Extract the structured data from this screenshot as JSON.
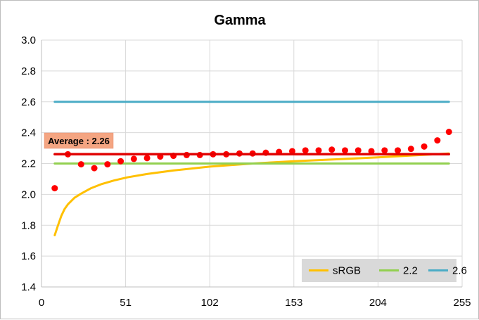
{
  "chart_data": {
    "type": "line",
    "title": "Gamma",
    "xlabel": "",
    "ylabel": "",
    "xlim": [
      0,
      255
    ],
    "ylim": [
      1.4,
      3.0
    ],
    "x_ticks": [
      "0",
      "51",
      "102",
      "153",
      "204",
      "255"
    ],
    "x_tick_values": [
      0,
      51,
      102,
      153,
      204,
      255
    ],
    "y_ticks": [
      "1.4",
      "1.6",
      "1.8",
      "2.0",
      "2.2",
      "2.4",
      "2.6",
      "2.8",
      "3.0"
    ],
    "y_tick_values": [
      1.4,
      1.6,
      1.8,
      2.0,
      2.2,
      2.4,
      2.6,
      2.8,
      3.0
    ],
    "grid": true,
    "legend_position": "bottom-right",
    "annotation": {
      "text": "Average : 2.26",
      "value": 2.26
    },
    "series": [
      {
        "name": "sRGB",
        "kind": "line",
        "color": "#ffc000",
        "x": [
          8,
          10,
          12,
          14,
          16,
          20,
          24,
          30,
          36,
          44,
          52,
          64,
          80,
          102,
          128,
          153,
          180,
          204,
          230,
          247
        ],
        "y": [
          1.735,
          1.8,
          1.86,
          1.905,
          1.935,
          1.978,
          2.005,
          2.04,
          2.065,
          2.09,
          2.11,
          2.132,
          2.155,
          2.18,
          2.2,
          2.215,
          2.228,
          2.24,
          2.255,
          2.265
        ]
      },
      {
        "name": "2.2",
        "kind": "line",
        "color": "#92d050",
        "x": [
          8,
          247
        ],
        "y": [
          2.2,
          2.2
        ]
      },
      {
        "name": "2.6",
        "kind": "line",
        "color": "#4bacc6",
        "x": [
          8,
          247
        ],
        "y": [
          2.6,
          2.6
        ]
      },
      {
        "kind": "points",
        "color": "#ff0000",
        "x": [
          8,
          16,
          24,
          32,
          40,
          48,
          56,
          64,
          72,
          80,
          88,
          96,
          104,
          112,
          120,
          128,
          136,
          144,
          152,
          160,
          168,
          176,
          184,
          192,
          200,
          208,
          216,
          224,
          232,
          240,
          247
        ],
        "y": [
          2.04,
          2.26,
          2.195,
          2.17,
          2.195,
          2.215,
          2.23,
          2.235,
          2.245,
          2.25,
          2.255,
          2.255,
          2.26,
          2.26,
          2.265,
          2.265,
          2.27,
          2.275,
          2.28,
          2.285,
          2.285,
          2.29,
          2.285,
          2.285,
          2.28,
          2.285,
          2.285,
          2.295,
          2.31,
          2.35,
          2.405
        ]
      },
      {
        "kind": "line",
        "color": "#e00000",
        "x": [
          8,
          247
        ],
        "y": [
          2.26,
          2.26
        ]
      }
    ]
  }
}
